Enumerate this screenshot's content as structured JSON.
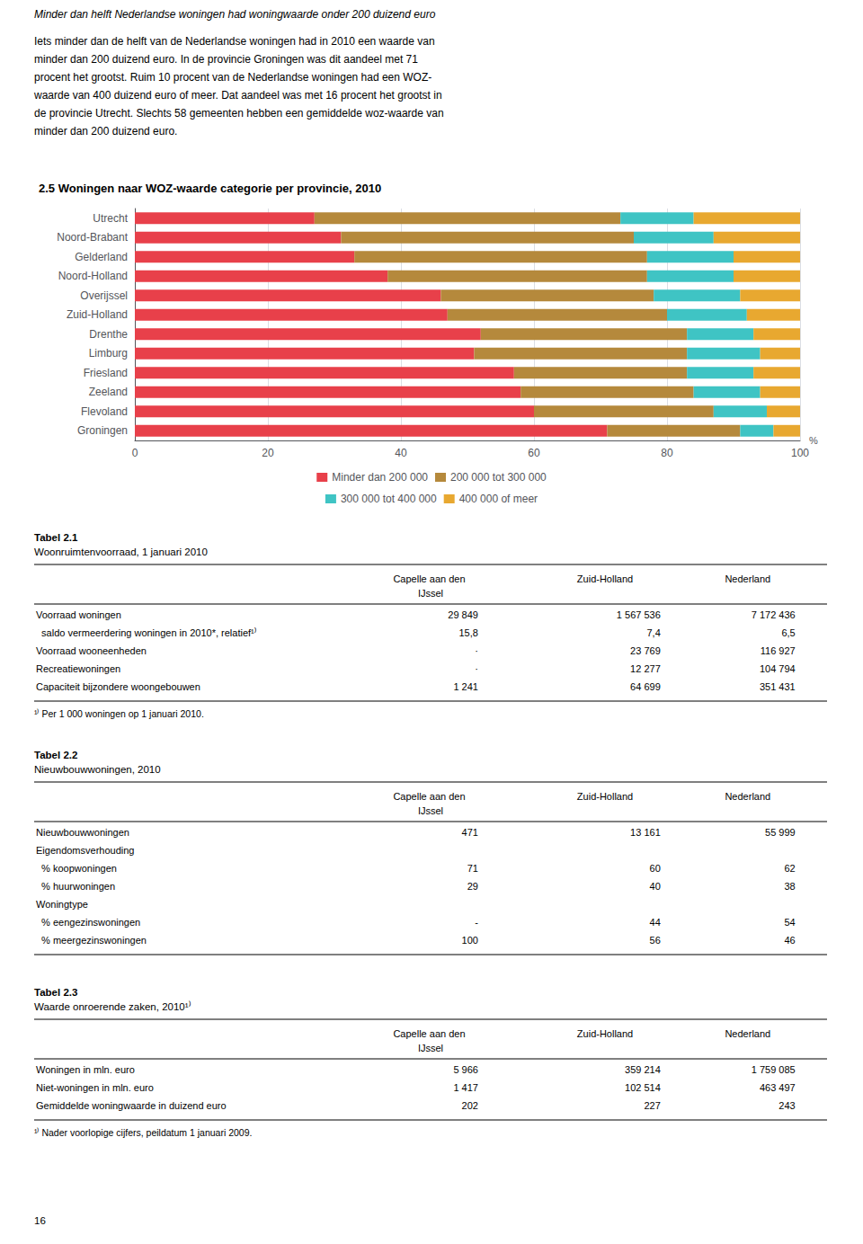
{
  "header": "Minder dan helft Nederlandse woningen had woningwaarde onder 200 duizend euro",
  "intro": [
    "Iets minder dan de helft van de Nederlandse woningen had in 2010 een waarde van",
    "minder dan 200 duizend euro. In de provincie Groningen was dit aandeel met 71",
    "procent het grootst. Ruim 10 procent van de Nederlandse woningen had een WOZ-",
    "waarde van 400 duizend euro of meer. Dat aandeel was met 16 procent het grootst in",
    "de provincie Utrecht. Slechts 58 gemeenten hebben een gemiddelde woz-waarde van",
    "minder dan 200 duizend euro."
  ],
  "chart_data": {
    "type": "bar",
    "title": "2.5 Woningen naar WOZ-waarde categorie per provincie, 2010",
    "orientation": "horizontal",
    "stacked": true,
    "categories": [
      "Utrecht",
      "Noord-Brabant",
      "Gelderland",
      "Noord-Holland",
      "Overijssel",
      "Zuid-Holland",
      "Drenthe",
      "Limburg",
      "Friesland",
      "Zeeland",
      "Flevoland",
      "Groningen"
    ],
    "series": [
      {
        "name": "Minder dan 200 000",
        "color": "#E8404A",
        "values": [
          27,
          31,
          33,
          38,
          46,
          47,
          52,
          51,
          57,
          58,
          60,
          71
        ]
      },
      {
        "name": "200 000 tot 300 000",
        "color": "#B5893C",
        "values": [
          46,
          44,
          44,
          39,
          32,
          33,
          31,
          32,
          26,
          26,
          27,
          20
        ]
      },
      {
        "name": "300 000 tot 400 000",
        "color": "#3FC4C4",
        "values": [
          11,
          12,
          13,
          13,
          13,
          12,
          10,
          11,
          10,
          10,
          8,
          5
        ]
      },
      {
        "name": "400 000 of meer",
        "color": "#E8A830",
        "values": [
          16,
          13,
          10,
          10,
          9,
          8,
          7,
          6,
          7,
          6,
          5,
          4
        ]
      }
    ],
    "xlabel": "%",
    "xlim": [
      0,
      100
    ],
    "xticks": [
      0,
      20,
      40,
      60,
      80,
      100
    ],
    "grid": true
  },
  "tables": [
    {
      "title": "Tabel 2.1",
      "subtitle": "Woonruimtenvoorraad, 1 januari 2010",
      "columns": [
        "Capelle aan den IJssel",
        "Zuid-Holland",
        "Nederland"
      ],
      "rows": [
        [
          "Voorraad woningen",
          "29 849",
          "1 567 536",
          "7 172 436"
        ],
        [
          "  saldo vermeerdering woningen in 2010*, relatief¹⁾",
          "15,8",
          "7,4",
          "6,5"
        ],
        [
          "Voorraad wooneenheden",
          "·",
          "23 769",
          "116 927"
        ],
        [
          "Recreatiewoningen",
          "·",
          "12 277",
          "104 794"
        ],
        [
          "Capaciteit bijzondere woongebouwen",
          "1 241",
          "64 699",
          "351 431"
        ]
      ],
      "footnote": "¹⁾ Per 1 000 woningen op 1 januari 2010."
    },
    {
      "title": "Tabel 2.2",
      "subtitle": "Nieuwbouwwoningen, 2010",
      "columns": [
        "Capelle aan den IJssel",
        "Zuid-Holland",
        "Nederland"
      ],
      "rows": [
        [
          "Nieuwbouwwoningen",
          "471",
          "13 161",
          "55 999"
        ],
        [
          "Eigendomsverhouding",
          null,
          null,
          null
        ],
        [
          "  % koopwoningen",
          "71",
          "60",
          "62"
        ],
        [
          "  % huurwoningen",
          "29",
          "40",
          "38"
        ],
        [
          "Woningtype",
          null,
          null,
          null
        ],
        [
          "  % eengezinswoningen",
          "-",
          "44",
          "54"
        ],
        [
          "  % meergezinswoningen",
          "100",
          "56",
          "46"
        ]
      ]
    },
    {
      "title": "Tabel 2.3",
      "subtitle": "Waarde onroerende zaken, 2010¹⁾",
      "columns": [
        "Capelle aan den IJssel",
        "Zuid-Holland",
        "Nederland"
      ],
      "rows": [
        [
          "Woningen in mln. euro",
          "5 966",
          "359 214",
          "1 759 085"
        ],
        [
          "Niet-woningen in mln. euro",
          "1 417",
          "102 514",
          "463 497"
        ],
        [
          "Gemiddelde woningwaarde in duizend euro",
          "202",
          "227",
          "243"
        ]
      ],
      "footnote": "¹⁾ Nader voorlopige cijfers, peildatum 1 januari 2009."
    }
  ],
  "page_number": "16"
}
